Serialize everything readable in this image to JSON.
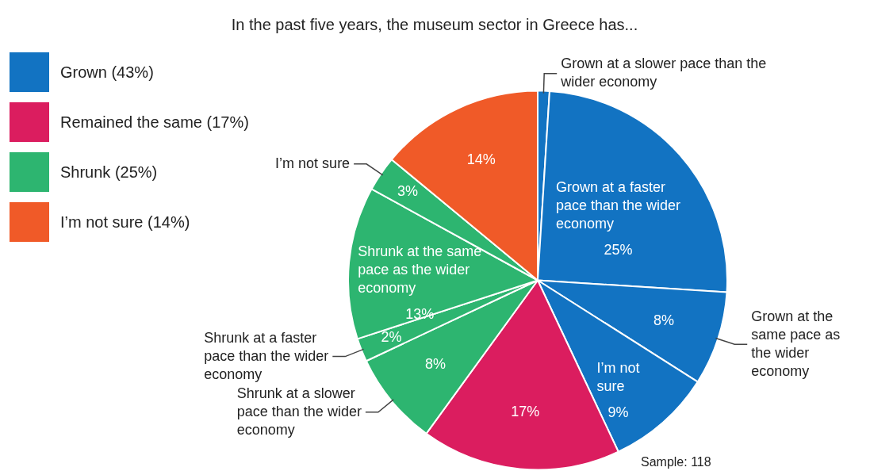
{
  "chart_data": {
    "type": "pie",
    "title": "In the past five years, the museum sector in Greece has...",
    "categories": [
      "Grown at a slower pace than the wider economy",
      "Grown at a faster pace than the wider economy",
      "Grown at the same pace as the wider economy",
      "I’m not sure",
      null,
      "Shrunk at a slower pace than the wider economy",
      "Shrunk at a faster pace than the wider economy",
      "Shrunk at the same pace as the wider economy",
      "I’m not sure",
      null
    ],
    "values": [
      1,
      25,
      8,
      9,
      17,
      8,
      2,
      13,
      3,
      14
    ],
    "value_labels": [
      null,
      "25%",
      "8%",
      "9%",
      "17%",
      "8%",
      "2%",
      "13%",
      "3%",
      "14%"
    ],
    "colors": [
      "#1273c2",
      "#1273c2",
      "#1273c2",
      "#1273c2",
      "#db1d5f",
      "#2db570",
      "#2db570",
      "#2db570",
      "#2db570",
      "#f05a28"
    ],
    "annotations": [
      "Grown (43%)",
      "Remained the same (17%)",
      "Shrunk (25%)",
      "I’m not sure (14%)",
      "Sample: 118"
    ]
  }
}
